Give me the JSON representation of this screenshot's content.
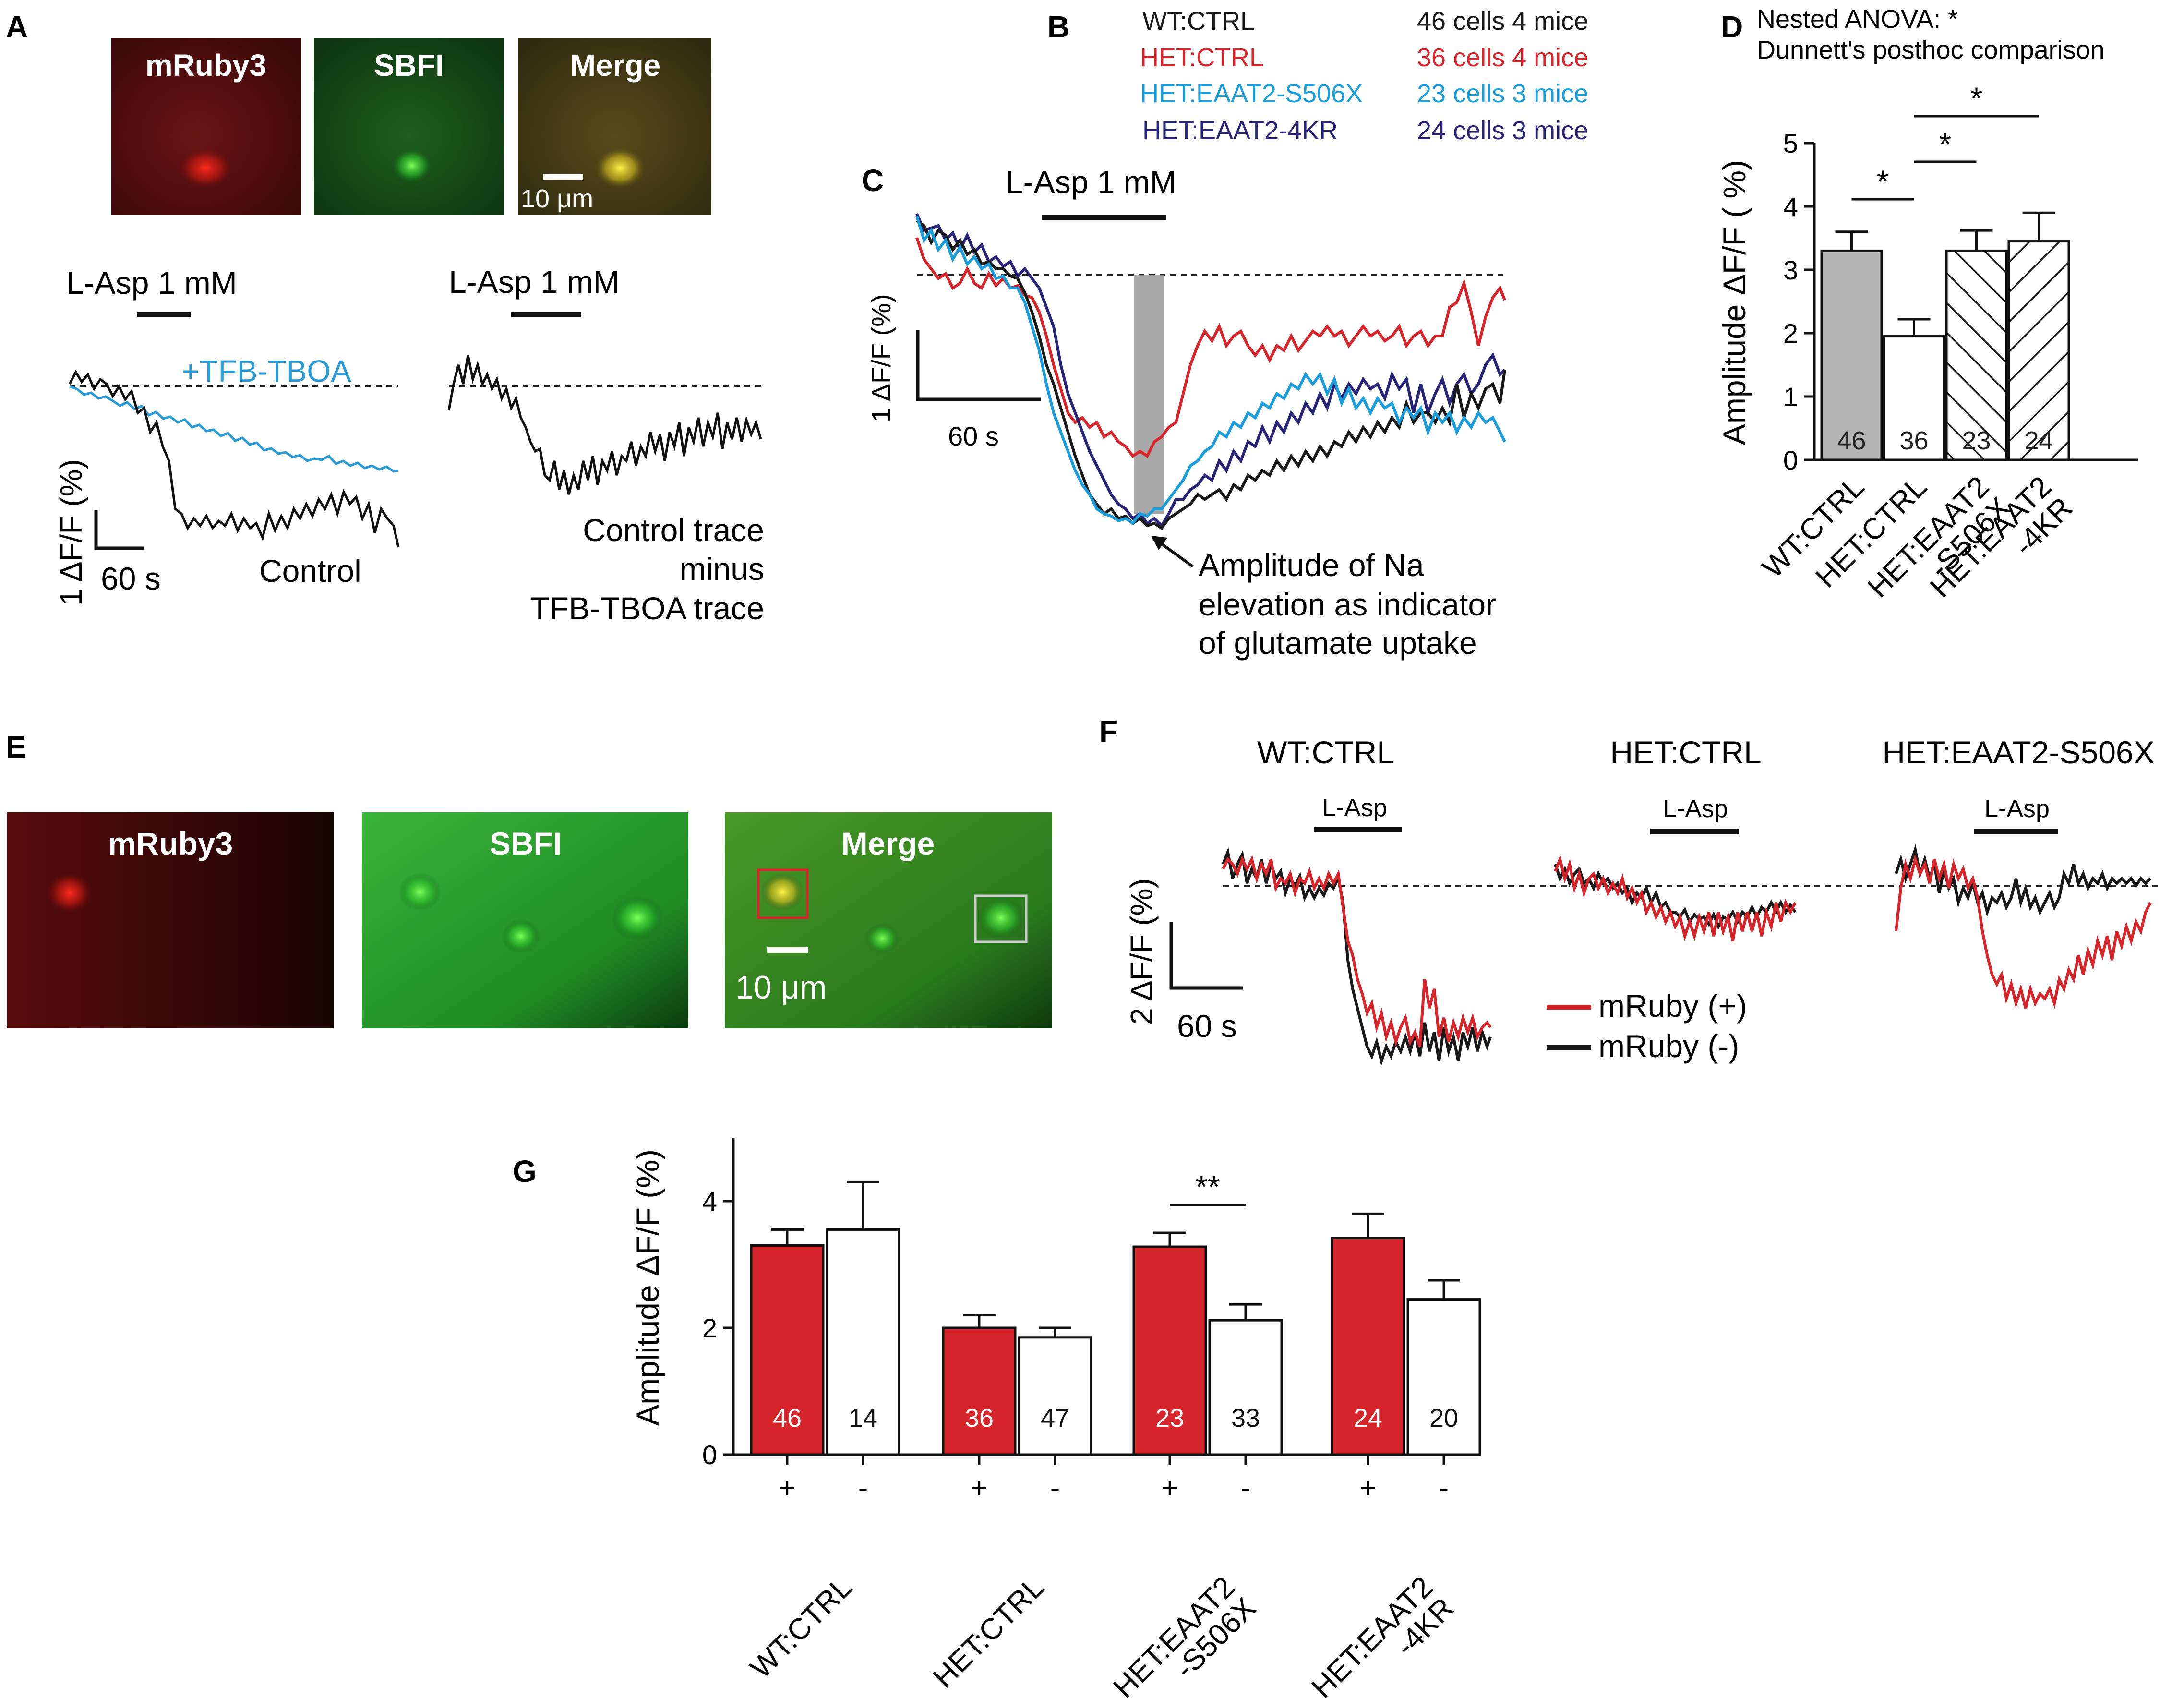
{
  "colors": {
    "wt": "#1a1a1a",
    "het": "#d7262b",
    "s506x": "#1c9ddb",
    "kr4": "#2a2479",
    "tboa": "#2a9ad6",
    "bar_gray": "#b4b4b4",
    "bar_red": "#d7262b",
    "grey_window": "#9a9a9a"
  },
  "panel_a": {
    "letter": "A",
    "img_labels": [
      "mRuby3",
      "SBFI",
      "Merge"
    ],
    "scalebar": "10 μm",
    "lasp_left": "L-Asp 1 mM",
    "lasp_right": "L-Asp 1 mM",
    "tboa_label": "+TFB-TBOA",
    "control_label": "Control",
    "ylabel": "1 ΔF/F (%)",
    "xscale": "60 s",
    "diff_line1": "Control trace",
    "diff_line2": "minus",
    "diff_line3": "TFB-TBOA trace"
  },
  "panel_b": {
    "letter": "B",
    "legend": [
      {
        "group": "WT:CTRL",
        "count": "46 cells 4 mice",
        "color": "#1a1a1a"
      },
      {
        "group": "HET:CTRL",
        "count": "36 cells 4 mice",
        "color": "#d7262b"
      },
      {
        "group": "HET:EAAT2-S506X",
        "count": "23 cells 3 mice",
        "color": "#1c9ddb"
      },
      {
        "group": "HET:EAAT2-4KR",
        "count": "24 cells 3 mice",
        "color": "#2a2479"
      }
    ]
  },
  "panel_c": {
    "letter": "C",
    "lasp": "L-Asp 1 mM",
    "ylabel": "1 ΔF/F (%)",
    "xscale": "60 s",
    "annotation": [
      "Amplitude of Na",
      "elevation as indicator",
      "of glutamate uptake"
    ]
  },
  "panel_e": {
    "letter": "E",
    "img_labels": [
      "mRuby3",
      "SBFI",
      "Merge"
    ],
    "scalebar": "10 μm"
  },
  "panel_f": {
    "letter": "F",
    "titles": [
      "WT:CTRL",
      "HET:CTRL",
      "HET:EAAT2-S506X"
    ],
    "lasp": "L-Asp",
    "ylabel": "2 ΔF/F (%)",
    "xscale": "60 s",
    "legend_pos": "mRuby (+)",
    "legend_neg": "mRuby (-)"
  },
  "chart_data": [
    {
      "id": "panel_d",
      "letter": "D",
      "type": "bar",
      "title_line1": "Nested ANOVA: *",
      "title_line2": "Dunnett's posthoc comparison",
      "ylabel": "Amplitude ΔF/F ( %)",
      "ylim": [
        0,
        5
      ],
      "yticks": [
        "0",
        "1",
        "2",
        "3",
        "4",
        "5"
      ],
      "categories": [
        "WT:CTRL",
        "HET:CTRL",
        "HET:EAAT2\n-S506X",
        "HET:EAAT2\n-4KR"
      ],
      "values": [
        3.3,
        1.95,
        3.3,
        3.45
      ],
      "errors": [
        0.3,
        0.27,
        0.32,
        0.45
      ],
      "n": [
        "46",
        "36",
        "23",
        "24"
      ],
      "fills": [
        "gray",
        "white",
        "hatch-back",
        "hatch-fwd"
      ],
      "significance": [
        {
          "from": 0,
          "to": 1,
          "label": "*"
        },
        {
          "from": 1,
          "to": 2,
          "label": "*"
        },
        {
          "from": 1,
          "to": 3,
          "label": "*"
        }
      ]
    },
    {
      "id": "panel_g",
      "letter": "G",
      "type": "bar",
      "ylabel": "Amplitude ΔF/F (%)",
      "ylim": [
        0,
        5
      ],
      "yticks": [
        "0",
        "2",
        "4"
      ],
      "categories": [
        "WT:CTRL",
        "HET:CTRL",
        "HET:EAAT2\n-S506X",
        "HET:EAAT2\n-4KR"
      ],
      "sublabels": [
        "+",
        "-"
      ],
      "series": [
        {
          "name": "mRuby (+)",
          "values": [
            3.3,
            2.0,
            3.28,
            3.42
          ],
          "errors": [
            0.25,
            0.2,
            0.22,
            0.38
          ],
          "n": [
            "46",
            "36",
            "23",
            "24"
          ]
        },
        {
          "name": "mRuby (-)",
          "values": [
            3.55,
            1.85,
            2.12,
            2.45
          ],
          "errors": [
            0.75,
            0.15,
            0.25,
            0.3
          ],
          "n": [
            "14",
            "47",
            "33",
            "20"
          ]
        }
      ],
      "significance": [
        {
          "group": 2,
          "label": "**"
        }
      ]
    }
  ]
}
